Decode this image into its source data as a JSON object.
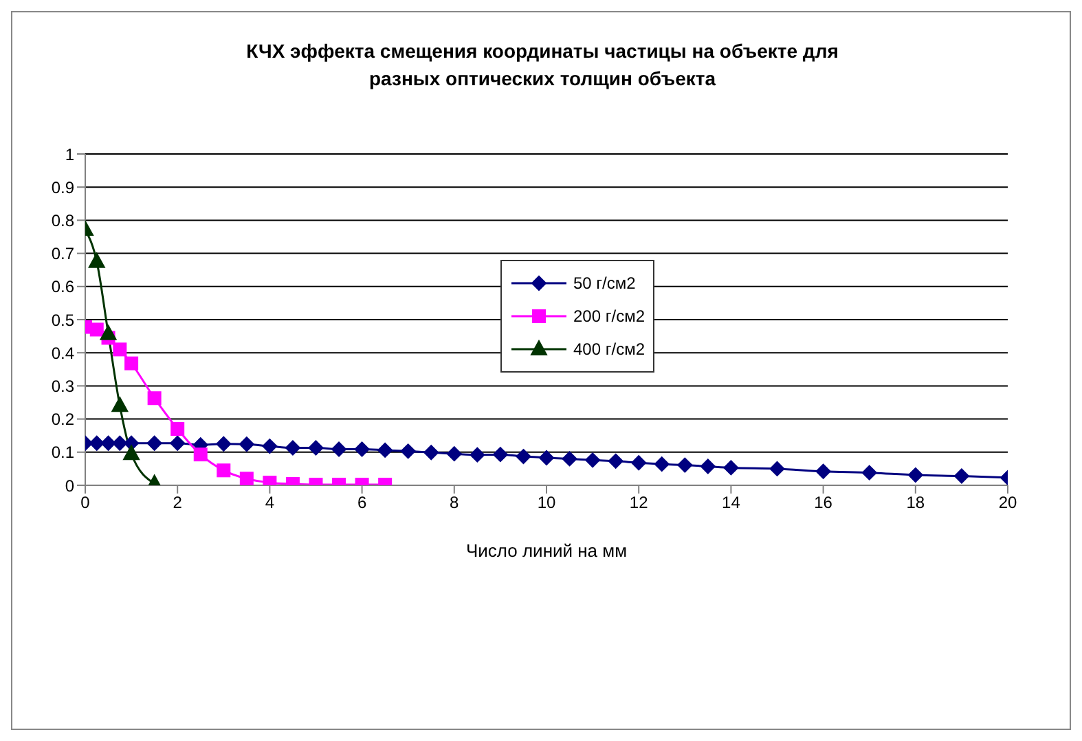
{
  "chart_data": {
    "type": "line",
    "title": "КЧХ эффекта смещения координаты частицы на объекте для разных оптических толщин объекта",
    "xlabel": "Число линий на мм",
    "xlim": [
      0,
      20
    ],
    "xticks": [
      0,
      2,
      4,
      6,
      8,
      10,
      12,
      14,
      16,
      18,
      20
    ],
    "ylim": [
      0,
      1
    ],
    "yticks": [
      0,
      0.1,
      0.2,
      0.3,
      0.4,
      0.5,
      0.6,
      0.7,
      0.8,
      0.9,
      1
    ],
    "grid": "y",
    "legend": "top",
    "series": [
      {
        "name": "50 г/см2",
        "color": "#000080",
        "marker": "diamond",
        "x": [
          0,
          0.25,
          0.5,
          0.75,
          1,
          1.5,
          2,
          2.5,
          3,
          3.5,
          4,
          4.5,
          5,
          5.5,
          6,
          6.5,
          7,
          7.5,
          8,
          8.5,
          9,
          9.5,
          10,
          10.5,
          11,
          11.5,
          12,
          12.5,
          13,
          13.5,
          14,
          15,
          16,
          17,
          18,
          19,
          20
        ],
        "values": [
          0.127,
          0.127,
          0.127,
          0.127,
          0.127,
          0.127,
          0.127,
          0.122,
          0.125,
          0.124,
          0.118,
          0.113,
          0.113,
          0.109,
          0.109,
          0.106,
          0.103,
          0.099,
          0.095,
          0.092,
          0.093,
          0.087,
          0.083,
          0.08,
          0.076,
          0.073,
          0.068,
          0.064,
          0.061,
          0.057,
          0.053,
          0.05,
          0.042,
          0.038,
          0.031,
          0.028,
          0.023
        ]
      },
      {
        "name": "200 г/см2",
        "color": "#ff00ff",
        "marker": "square",
        "x": [
          0,
          0.25,
          0.5,
          0.75,
          1,
          1.5,
          2,
          2.5,
          3,
          3.5,
          4,
          4.5,
          5,
          5.5,
          6,
          6.5
        ],
        "values": [
          0.478,
          0.47,
          0.445,
          0.41,
          0.368,
          0.263,
          0.17,
          0.093,
          0.045,
          0.02,
          0.008,
          0.004,
          0.002,
          0.002,
          0.002,
          0.002
        ]
      },
      {
        "name": "400 г/см2",
        "color": "#003300",
        "marker": "triangle",
        "x": [
          0,
          0.25,
          0.5,
          0.75,
          1,
          1.5
        ],
        "values": [
          0.772,
          0.675,
          0.457,
          0.24,
          0.095,
          0.005
        ]
      }
    ]
  }
}
